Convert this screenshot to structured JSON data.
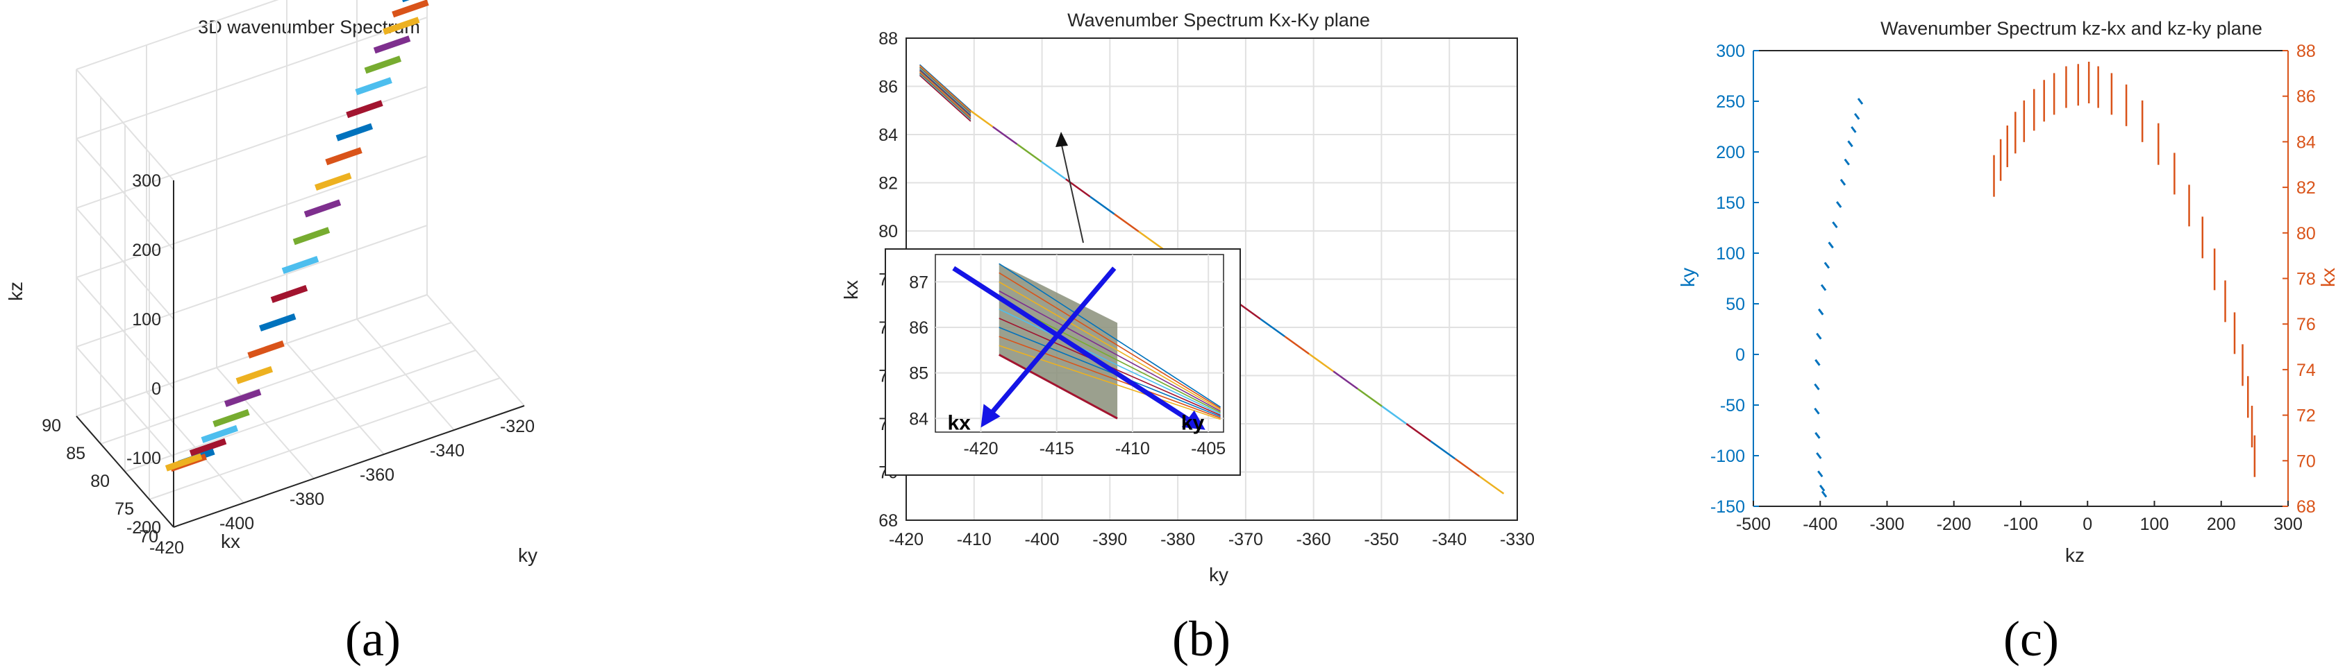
{
  "captions": [
    "(a)",
    "(b)",
    "(c)"
  ],
  "colors": [
    "#0072BD",
    "#D95319",
    "#EDB120",
    "#7E2F8E",
    "#77AC30",
    "#4DBEEE",
    "#A2142F"
  ],
  "chart_data": [
    {
      "type": "scatter",
      "title": "3D wavenumber Spectrum",
      "xlabel": "ky",
      "ylabel": "kx",
      "zlabel": "kz",
      "xticks": [
        "-420",
        "-400",
        "-380",
        "-360",
        "-340",
        "-320"
      ],
      "yticks": [
        "90",
        "85",
        "80",
        "75",
        "70"
      ],
      "zticks": [
        "300",
        "200",
        "100",
        "0",
        "-100",
        "-200"
      ],
      "xlim": [
        -420,
        -320
      ],
      "ylim": [
        70,
        90
      ],
      "zlim": [
        -200,
        300
      ],
      "grid": true,
      "series": [
        {
          "ky": -327,
          "kx": 86.5,
          "kz": 275,
          "color": "#0072BD"
        },
        {
          "ky": -331,
          "kx": 85.5,
          "kz": 268,
          "color": "#D95319"
        },
        {
          "ky": -335,
          "kx": 84.5,
          "kz": 258,
          "color": "#EDB120"
        },
        {
          "ky": -339,
          "kx": 83.5,
          "kz": 246,
          "color": "#7E2F8E"
        },
        {
          "ky": -343,
          "kx": 82.5,
          "kz": 232,
          "color": "#77AC30"
        },
        {
          "ky": -347,
          "kx": 81.5,
          "kz": 216,
          "color": "#4DBEEE"
        },
        {
          "ky": -351,
          "kx": 80.5,
          "kz": 198,
          "color": "#A2142F"
        },
        {
          "ky": -355,
          "kx": 79.7,
          "kz": 178,
          "color": "#0072BD"
        },
        {
          "ky": -359,
          "kx": 79.0,
          "kz": 156,
          "color": "#D95319"
        },
        {
          "ky": -363,
          "kx": 78.3,
          "kz": 132,
          "color": "#EDB120"
        },
        {
          "ky": -367,
          "kx": 77.6,
          "kz": 106,
          "color": "#7E2F8E"
        },
        {
          "ky": -371,
          "kx": 77.0,
          "kz": 78,
          "color": "#77AC30"
        },
        {
          "ky": -375,
          "kx": 76.4,
          "kz": 48,
          "color": "#4DBEEE"
        },
        {
          "ky": -379,
          "kx": 75.8,
          "kz": 18,
          "color": "#A2142F"
        },
        {
          "ky": -383,
          "kx": 75.3,
          "kz": -12,
          "color": "#0072BD"
        },
        {
          "ky": -387,
          "kx": 74.8,
          "kz": -40,
          "color": "#D95319"
        },
        {
          "ky": -391,
          "kx": 74.3,
          "kz": -66,
          "color": "#EDB120"
        },
        {
          "ky": -395,
          "kx": 73.8,
          "kz": -88,
          "color": "#7E2F8E"
        },
        {
          "ky": -399,
          "kx": 73.3,
          "kz": -106,
          "color": "#77AC30"
        },
        {
          "ky": -403,
          "kx": 72.8,
          "kz": -118,
          "color": "#4DBEEE"
        },
        {
          "ky": -407,
          "kx": 72.3,
          "kz": -126,
          "color": "#A2142F"
        },
        {
          "ky": -411,
          "kx": 71.8,
          "kz": -130,
          "color": "#0072BD"
        },
        {
          "ky": -414,
          "kx": 71.3,
          "kz": -128,
          "color": "#D95319"
        },
        {
          "ky": -416,
          "kx": 70.8,
          "kz": -120,
          "color": "#EDB120"
        }
      ]
    },
    {
      "type": "line",
      "title": "Wavenumber Spectrum Kx-Ky plane",
      "xlabel": "ky",
      "ylabel": "kx",
      "xlim": [
        -420,
        -330
      ],
      "ylim": [
        68,
        88
      ],
      "xticks": [
        "-420",
        "-410",
        "-400",
        "-390",
        "-380",
        "-370",
        "-360",
        "-350",
        "-340",
        "-330"
      ],
      "yticks": [
        "88",
        "86",
        "84",
        "82",
        "80",
        "78",
        "76",
        "74",
        "72",
        "70",
        "68"
      ],
      "grid": true,
      "line": {
        "x": [
          -418,
          -332
        ],
        "y": [
          86.5,
          69.1
        ]
      },
      "inset": {
        "xlim": [
          -423,
          -404
        ],
        "ylim": [
          83.7,
          87.6
        ],
        "xticks": [
          "-420",
          "-415",
          "-410",
          "-405"
        ],
        "yticks": [
          "87",
          "86",
          "85",
          "84"
        ],
        "arrow_labels": {
          "kx": "kx",
          "ky": "ky"
        }
      }
    },
    {
      "type": "scatter",
      "title": "Wavenumber Spectrum kz-kx and kz-ky plane",
      "xlabel": "kz",
      "ylabel_left": "ky",
      "ylabel_right": "kx",
      "xlim": [
        -500,
        300
      ],
      "ylim_left": [
        -150,
        300
      ],
      "ylim_right": [
        68,
        88
      ],
      "xticks": [
        "-500",
        "-400",
        "-300",
        "-200",
        "-100",
        "0",
        "100",
        "200",
        "300"
      ],
      "yticks_left": [
        "300",
        "250",
        "200",
        "150",
        "100",
        "50",
        "0",
        "-50",
        "-100",
        "-150"
      ],
      "yticks_right": [
        "88",
        "86",
        "84",
        "82",
        "80",
        "78",
        "76",
        "74",
        "72",
        "70",
        "68"
      ],
      "left_color": "#0072BD",
      "right_color": "#D95319",
      "series_ky": {
        "name": "ky",
        "kz": [
          -340,
          -345,
          -350,
          -355,
          -360,
          -366,
          -372,
          -378,
          -384,
          -390,
          -395,
          -399,
          -402,
          -404,
          -405,
          -405,
          -404,
          -402,
          -400,
          -397,
          -394
        ],
        "ky": [
          250,
          235,
          222,
          208,
          190,
          170,
          148,
          128,
          108,
          88,
          66,
          42,
          18,
          -8,
          -32,
          -56,
          -80,
          -100,
          -118,
          -132,
          -138
        ]
      },
      "series_kx": {
        "name": "kx",
        "kz": [
          -140,
          -130,
          -120,
          -108,
          -95,
          -80,
          -65,
          -50,
          -32,
          -14,
          2,
          16,
          36,
          58,
          82,
          106,
          130,
          152,
          172,
          190,
          206,
          220,
          232,
          240,
          246,
          250
        ],
        "kx": [
          82.5,
          83.2,
          83.8,
          84.4,
          84.9,
          85.4,
          85.8,
          86.1,
          86.4,
          86.5,
          86.6,
          86.4,
          86.1,
          85.6,
          84.9,
          83.9,
          82.6,
          81.2,
          79.8,
          78.4,
          77.0,
          75.6,
          74.2,
          72.8,
          71.5,
          70.2
        ]
      }
    }
  ]
}
